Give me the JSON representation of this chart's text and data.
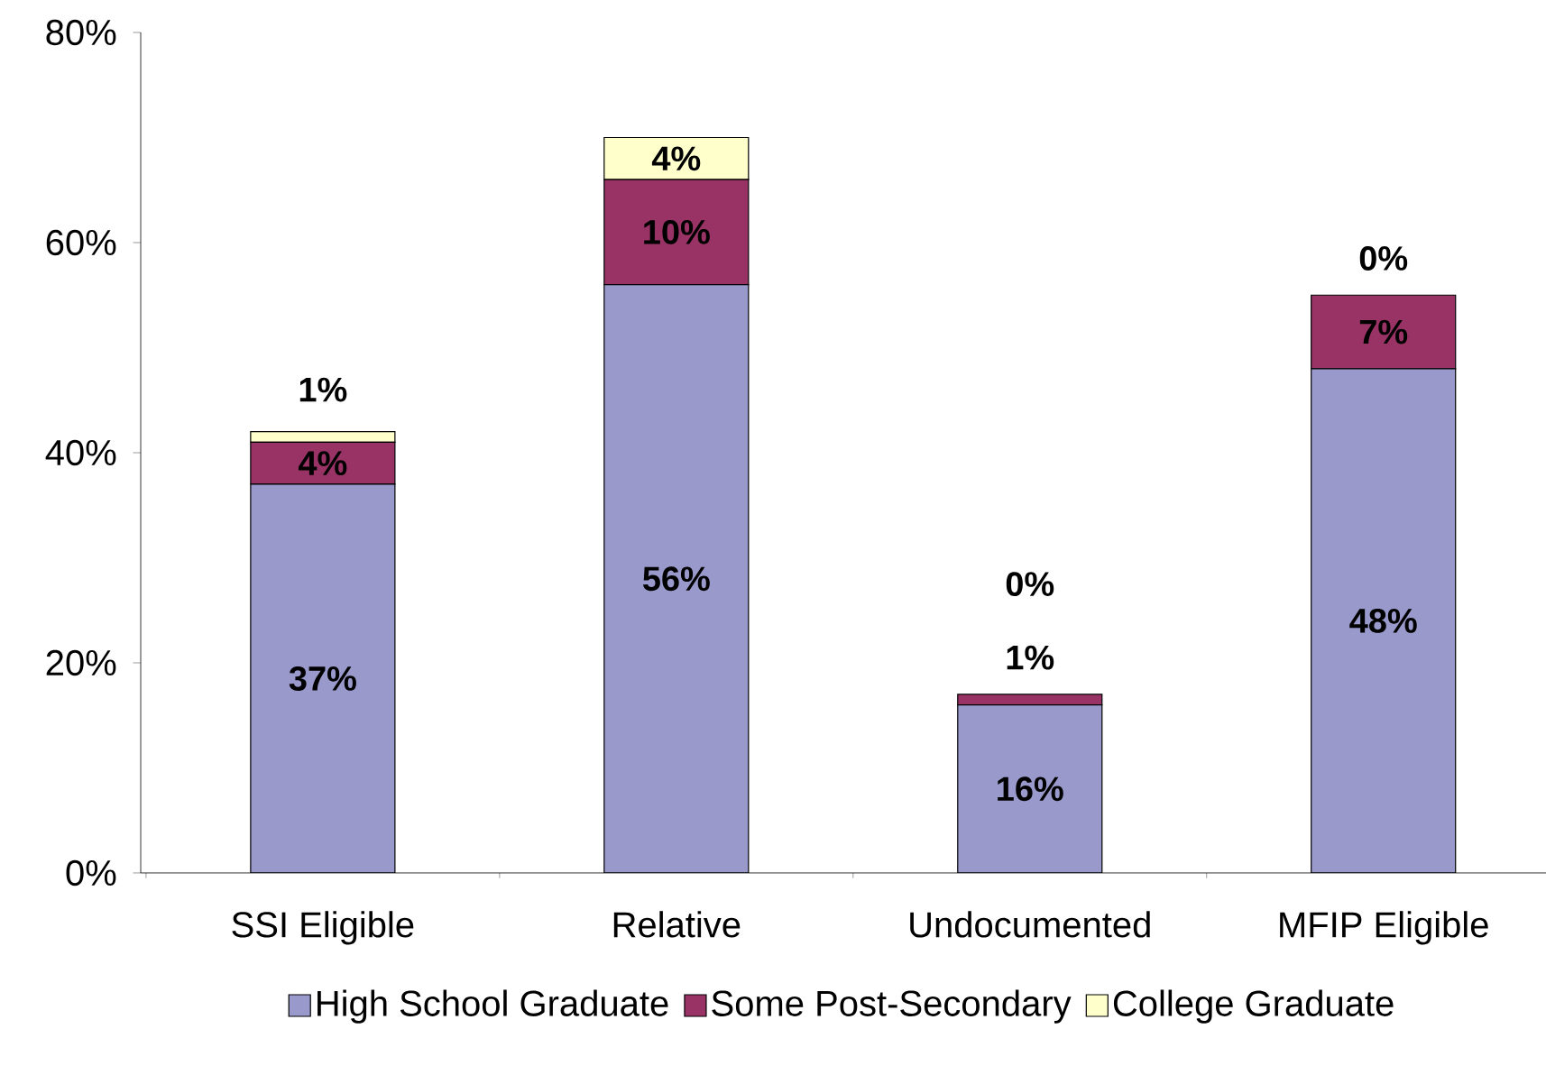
{
  "chart_data": {
    "type": "bar",
    "stacked": true,
    "categories": [
      "SSI Eligible",
      "Relative",
      "Undocumented",
      "MFIP Eligible"
    ],
    "series": [
      {
        "name": "High School Graduate",
        "color": "#9999cc",
        "values": [
          37,
          56,
          16,
          48
        ],
        "value_labels": [
          "37%",
          "56%",
          "16%",
          "48%"
        ]
      },
      {
        "name": "Some Post-Secondary",
        "color": "#993366",
        "values": [
          4,
          10,
          1,
          7
        ],
        "value_labels": [
          "4%",
          "10%",
          "1%",
          "7%"
        ]
      },
      {
        "name": "College Graduate",
        "color": "#ffffcc",
        "values": [
          1,
          4,
          0,
          0
        ],
        "value_labels": [
          "1%",
          "4%",
          "0%",
          "0%"
        ]
      }
    ],
    "ylim": [
      0,
      80
    ],
    "yticks": [
      {
        "value": 0,
        "label": "0%"
      },
      {
        "value": 20,
        "label": "20%"
      },
      {
        "value": 40,
        "label": "40%"
      },
      {
        "value": 60,
        "label": "60%"
      },
      {
        "value": 80,
        "label": "80%"
      }
    ],
    "grid": false,
    "legend": "bottom"
  }
}
